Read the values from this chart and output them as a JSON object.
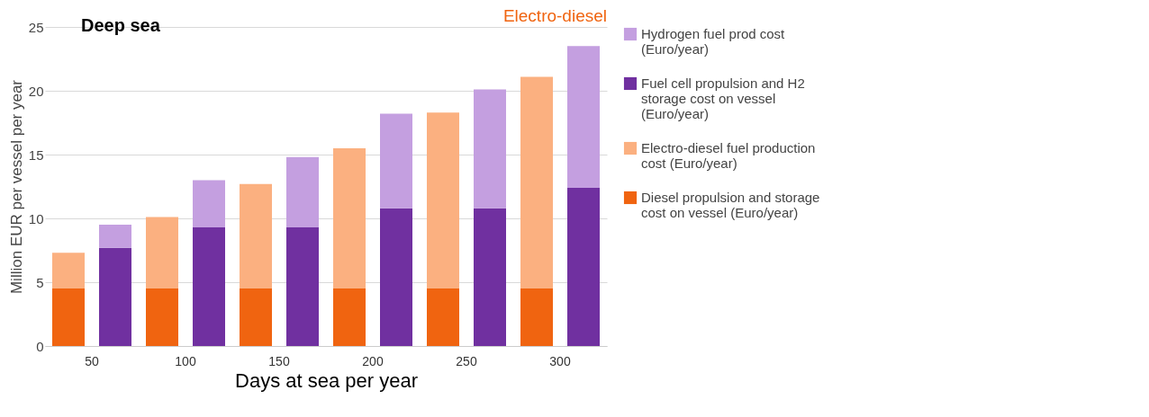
{
  "chart_data": {
    "type": "bar",
    "stacked": true,
    "title": "Deep sea",
    "xlabel": "Days at sea per year",
    "ylabel": "Million EUR per vessel per year",
    "annotations": [
      "Electro-diesel"
    ],
    "categories": [
      "50",
      null,
      "100",
      null,
      "150",
      null,
      "200",
      null,
      "250",
      null,
      "300",
      null
    ],
    "series": [
      {
        "name": "Diesel propulsion and storage cost on vessel (Euro/year)",
        "color": "#f06410",
        "values": [
          4.5,
          null,
          4.5,
          null,
          4.5,
          null,
          4.5,
          null,
          4.5,
          null,
          4.5,
          null
        ]
      },
      {
        "name": "Electro-diesel fuel production cost (Euro/year)",
        "color": "#fbb080",
        "values": [
          2.8,
          null,
          5.6,
          null,
          8.2,
          null,
          11.0,
          null,
          13.8,
          null,
          16.6,
          null
        ]
      },
      {
        "name": "Fuel cell propulsion and H2 storage cost on vessel (Euro/year)",
        "color": "#7030a0",
        "values": [
          null,
          7.7,
          null,
          9.3,
          null,
          9.3,
          null,
          10.8,
          null,
          10.8,
          null,
          12.4
        ]
      },
      {
        "name": "Hydrogen fuel prod cost (Euro/year)",
        "color": "#c49fe0",
        "values": [
          null,
          1.8,
          null,
          3.7,
          null,
          5.5,
          null,
          7.4,
          null,
          9.3,
          null,
          11.1
        ]
      }
    ],
    "ylim": [
      0,
      25
    ],
    "yticks": [
      0,
      5,
      10,
      15,
      20,
      25
    ],
    "grid": "y",
    "legend": "right"
  }
}
